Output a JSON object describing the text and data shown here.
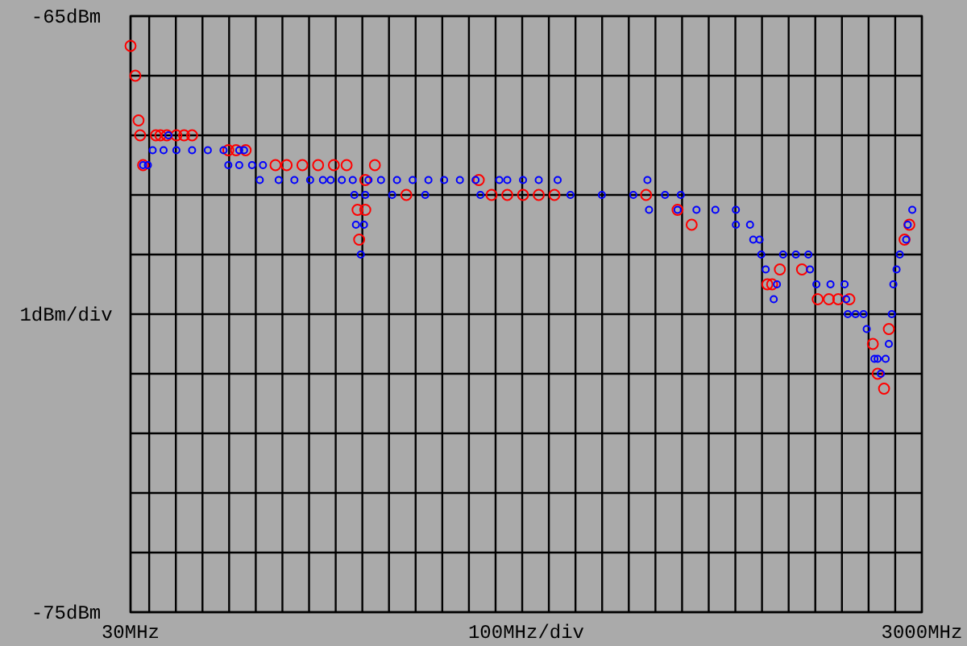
{
  "chart_data": {
    "type": "scatter",
    "xlabel": "100MHz/div",
    "ylabel": "1dBm/div",
    "xlim": [
      30,
      3000
    ],
    "ylim": [
      -75,
      -65
    ],
    "xticks": [
      {
        "value": 30,
        "label": "30MHz"
      },
      {
        "value": 100,
        "label": null
      },
      {
        "value": 200,
        "label": null
      },
      {
        "value": 300,
        "label": null
      },
      {
        "value": 400,
        "label": null
      },
      {
        "value": 500,
        "label": null
      },
      {
        "value": 600,
        "label": null
      },
      {
        "value": 700,
        "label": null
      },
      {
        "value": 800,
        "label": null
      },
      {
        "value": 900,
        "label": null
      },
      {
        "value": 1000,
        "label": null
      },
      {
        "value": 1100,
        "label": null
      },
      {
        "value": 1200,
        "label": null
      },
      {
        "value": 1300,
        "label": null
      },
      {
        "value": 1400,
        "label": null
      },
      {
        "value": 1500,
        "label": null
      },
      {
        "value": 1600,
        "label": null
      },
      {
        "value": 1700,
        "label": null
      },
      {
        "value": 1800,
        "label": null
      },
      {
        "value": 1900,
        "label": null
      },
      {
        "value": 2000,
        "label": null
      },
      {
        "value": 2100,
        "label": null
      },
      {
        "value": 2200,
        "label": null
      },
      {
        "value": 2300,
        "label": null
      },
      {
        "value": 2400,
        "label": null
      },
      {
        "value": 2500,
        "label": null
      },
      {
        "value": 2600,
        "label": null
      },
      {
        "value": 2700,
        "label": null
      },
      {
        "value": 2800,
        "label": null
      },
      {
        "value": 2900,
        "label": null
      },
      {
        "value": 3000,
        "label": "3000MHz"
      }
    ],
    "yticks": [
      {
        "value": -65,
        "label": "-65dBm"
      },
      {
        "value": -66,
        "label": null
      },
      {
        "value": -67,
        "label": null
      },
      {
        "value": -68,
        "label": null
      },
      {
        "value": -69,
        "label": null
      },
      {
        "value": -70,
        "label": null
      },
      {
        "value": -71,
        "label": null
      },
      {
        "value": -72,
        "label": null
      },
      {
        "value": -73,
        "label": null
      },
      {
        "value": -74,
        "label": null
      },
      {
        "value": -75,
        "label": "-75dBm"
      }
    ],
    "grid": true,
    "marker": "circle",
    "series": [
      {
        "color": "#ff0000",
        "x": [
          30,
          48,
          60,
          66,
          77,
          125,
          142,
          166,
          202,
          231,
          261,
          397,
          426,
          462,
          574,
          616,
          675,
          734,
          793,
          841,
          947,
          911,
          882,
          911,
          888,
          1065,
          1337,
          1385,
          1444,
          1503,
          1562,
          1621,
          1965,
          2083,
          2136,
          2420,
          2438,
          2467,
          2550,
          2609,
          2651,
          2686,
          2728,
          2816,
          2834,
          2858,
          2876,
          2935,
          2953
        ],
        "values": [
          -65.5,
          -66,
          -66.75,
          -67,
          -67.5,
          -67,
          -67,
          -67,
          -67,
          -67,
          -67,
          -67.25,
          -67.25,
          -67.25,
          -67.5,
          -67.5,
          -67.5,
          -67.5,
          -67.5,
          -67.5,
          -67.5,
          -67.75,
          -68.25,
          -68.25,
          -68.75,
          -68,
          -67.75,
          -68,
          -68,
          -68,
          -68,
          -68,
          -68,
          -68.25,
          -68.5,
          -69.5,
          -69.5,
          -69.25,
          -69.25,
          -69.75,
          -69.75,
          -69.75,
          -69.75,
          -70.5,
          -71,
          -71.25,
          -70.25,
          -68.75,
          -68.5
        ]
      },
      {
        "color": "#0000ff",
        "x": [
          77,
          95,
          113,
          154,
          172,
          202,
          261,
          320,
          379,
          438,
          456,
          397,
          438,
          486,
          527,
          515,
          586,
          645,
          704,
          752,
          781,
          823,
          864,
          870,
          876,
          894,
          906,
          911,
          923,
          970,
          1030,
          1089,
          1012,
          1136,
          1148,
          1207,
          1266,
          1325,
          1343,
          1414,
          1444,
          1503,
          1562,
          1633,
          1681,
          1799,
          1917,
          2036,
          2095,
          1970,
          1976,
          2083,
          2154,
          2225,
          2302,
          2302,
          2355,
          2367,
          2391,
          2397,
          2414,
          2444,
          2456,
          2479,
          2527,
          2574,
          2580,
          2604,
          2657,
          2710,
          2716,
          2722,
          2751,
          2781,
          2793,
          2822,
          2834,
          2846,
          2864,
          2876,
          2887,
          2893,
          2905,
          2917,
          2941,
          2947,
          2964
        ],
        "values": [
          -67.5,
          -67.5,
          -67.25,
          -67.25,
          -67,
          -67.25,
          -67.25,
          -67.25,
          -67.25,
          -67.25,
          -67.25,
          -67.5,
          -67.5,
          -67.5,
          -67.5,
          -67.75,
          -67.75,
          -67.75,
          -67.75,
          -67.75,
          -67.75,
          -67.75,
          -67.75,
          -68,
          -68.5,
          -69,
          -68.5,
          -68,
          -67.75,
          -67.75,
          -67.75,
          -67.75,
          -68,
          -68,
          -67.75,
          -67.75,
          -67.75,
          -67.75,
          -68,
          -67.75,
          -67.75,
          -67.75,
          -67.75,
          -67.75,
          -68,
          -68,
          -68,
          -68,
          -68,
          -67.75,
          -68.25,
          -68.25,
          -68.25,
          -68.25,
          -68.25,
          -68.5,
          -68.5,
          -68.75,
          -68.75,
          -69,
          -69.25,
          -69.75,
          -69.5,
          -69,
          -69,
          -69,
          -69.25,
          -69.5,
          -69.5,
          -69.5,
          -69.75,
          -70,
          -70,
          -70,
          -70.25,
          -70.75,
          -70.75,
          -71,
          -70.75,
          -70.5,
          -70,
          -69.5,
          -69.25,
          -69,
          -68.75,
          -68.5,
          -68.25
        ]
      }
    ]
  }
}
